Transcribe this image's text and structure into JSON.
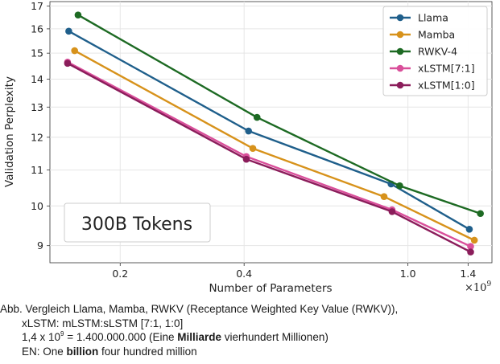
{
  "chart_data": {
    "type": "line",
    "xlabel": "Number of Parameters",
    "ylabel": "Validation Perplexity",
    "x_scale": "log",
    "y_scale": "log",
    "x_multiplier_label": "×10",
    "x_multiplier_exponent": "9",
    "xlim": [
      0.135,
      1.6
    ],
    "ylim": [
      8.6,
      17.2
    ],
    "x_ticks": [
      {
        "value": 0.2,
        "label": "0.2"
      },
      {
        "value": 0.4,
        "label": "0.4"
      },
      {
        "value": 1.0,
        "label": "1.0"
      },
      {
        "value": 1.4,
        "label": "1.4"
      }
    ],
    "y_ticks": [
      {
        "value": 9,
        "label": "9"
      },
      {
        "value": 10,
        "label": "10"
      },
      {
        "value": 11,
        "label": "11"
      },
      {
        "value": 12,
        "label": "12"
      },
      {
        "value": 13,
        "label": "13"
      },
      {
        "value": 14,
        "label": "14"
      },
      {
        "value": 15,
        "label": "15"
      },
      {
        "value": 16,
        "label": "16"
      },
      {
        "value": 17,
        "label": "17"
      }
    ],
    "grid": true,
    "legend_position": "top-right",
    "annotation": "300B Tokens",
    "series": [
      {
        "name": "Llama",
        "color": "#1f5f8b",
        "x": [
          0.15,
          0.41,
          0.91,
          1.41
        ],
        "y": [
          15.9,
          12.2,
          10.6,
          9.4
        ]
      },
      {
        "name": "Mamba",
        "color": "#d7921b",
        "x": [
          0.155,
          0.42,
          0.875,
          1.45
        ],
        "y": [
          15.1,
          11.65,
          10.25,
          9.13
        ]
      },
      {
        "name": "RWKV-4",
        "color": "#1d6a23",
        "x": [
          0.158,
          0.43,
          0.955,
          1.5
        ],
        "y": [
          16.6,
          12.65,
          10.55,
          9.8
        ]
      },
      {
        "name": "xLSTM[7:1]",
        "color": "#d94f9a",
        "x": [
          0.149,
          0.405,
          0.915,
          1.42
        ],
        "y": [
          14.65,
          11.4,
          9.9,
          8.98
        ]
      },
      {
        "name": "xLSTM[1:0]",
        "color": "#8b1d5b",
        "x": [
          0.149,
          0.405,
          0.915,
          1.42
        ],
        "y": [
          14.6,
          11.32,
          9.85,
          8.85
        ]
      }
    ]
  },
  "caption": {
    "line1": "Abb. Vergleich Llama, Mamba, RWKV (Receptance Weighted Key Value (RWKV)),",
    "line2": "xLSTM: mLSTM:sLSTM [7:1, 1:0]",
    "line3_a": "1,4 x 10",
    "line3_sup": "9",
    "line3_b": " = 1.400.000.000 (Eine ",
    "line3_bold": "Milliarde",
    "line3_c": " vierhundert Millionen)",
    "line4_a": "EN: One ",
    "line4_bold": "billion",
    "line4_b": " four hundred million"
  }
}
